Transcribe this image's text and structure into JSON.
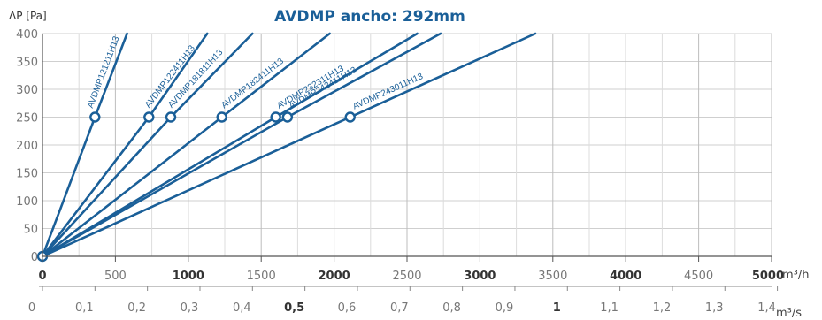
{
  "chart_data": {
    "type": "line",
    "title": "AVDMP ancho: 292mm",
    "ylabel": "ΔP [Pa]",
    "xlabel": "m³/h",
    "x2label": "m³/s",
    "xlim": [
      0,
      5000
    ],
    "ylim": [
      0,
      400
    ],
    "grid": true,
    "line_color": "#1a5f98",
    "title_color": "#1a5f98",
    "grid_color": "#cfcfcf",
    "y_ticks": [
      "0",
      "50",
      "100",
      "150",
      "200",
      "250",
      "300",
      "350",
      "400"
    ],
    "x_ticks": [
      {
        "value": 0,
        "label": "0",
        "bold": true
      },
      {
        "value": 500,
        "label": "500",
        "bold": false
      },
      {
        "value": 1000,
        "label": "1000",
        "bold": true
      },
      {
        "value": 1500,
        "label": "1500",
        "bold": false
      },
      {
        "value": 2000,
        "label": "2000",
        "bold": true
      },
      {
        "value": 2500,
        "label": "2500",
        "bold": false
      },
      {
        "value": 3000,
        "label": "3000",
        "bold": true
      },
      {
        "value": 3500,
        "label": "3500",
        "bold": false
      },
      {
        "value": 4000,
        "label": "4000",
        "bold": true
      },
      {
        "value": 4500,
        "label": "4500",
        "bold": false
      },
      {
        "value": 5000,
        "label": "5000",
        "bold": true
      }
    ],
    "x2_ticks": [
      {
        "value": 0,
        "label": "0",
        "bold": false
      },
      {
        "value": 0.1,
        "label": "0,1",
        "bold": false
      },
      {
        "value": 0.2,
        "label": "0,2",
        "bold": false
      },
      {
        "value": 0.3,
        "label": "0,3",
        "bold": false
      },
      {
        "value": 0.4,
        "label": "0,4",
        "bold": false
      },
      {
        "value": 0.5,
        "label": "0,5",
        "bold": true
      },
      {
        "value": 0.6,
        "label": "0,6",
        "bold": false
      },
      {
        "value": 0.7,
        "label": "0,7",
        "bold": false
      },
      {
        "value": 0.8,
        "label": "0,8",
        "bold": false
      },
      {
        "value": 0.9,
        "label": "0,9",
        "bold": false
      },
      {
        "value": 1.0,
        "label": "1",
        "bold": true
      },
      {
        "value": 1.1,
        "label": "1,1",
        "bold": false
      },
      {
        "value": 1.2,
        "label": "1,2",
        "bold": false
      },
      {
        "value": 1.3,
        "label": "1,3",
        "bold": false
      },
      {
        "value": 1.4,
        "label": "1,4",
        "bold": false
      }
    ],
    "series": [
      {
        "name": "AVDMP121211H13",
        "x": [
          0,
          360,
          580
        ],
        "y": [
          0,
          250,
          400
        ]
      },
      {
        "name": "AVDMP122411H13",
        "x": [
          0,
          730,
          1130
        ],
        "y": [
          0,
          250,
          400
        ]
      },
      {
        "name": "AVDMP181811H13",
        "x": [
          0,
          880,
          1440
        ],
        "y": [
          0,
          250,
          400
        ]
      },
      {
        "name": "AVDMP182411H13",
        "x": [
          0,
          1230,
          1970
        ],
        "y": [
          0,
          250,
          400
        ]
      },
      {
        "name": "AVDMP232311H13",
        "x": [
          0,
          1600,
          2570
        ],
        "y": [
          0,
          250,
          400
        ]
      },
      {
        "name": "AVDMP242411H13",
        "x": [
          0,
          1680,
          2730
        ],
        "y": [
          0,
          250,
          400
        ]
      },
      {
        "name": "AVDMP243011H13",
        "x": [
          0,
          2110,
          3380
        ],
        "y": [
          0,
          250,
          400
        ]
      }
    ],
    "markers": [
      {
        "x": 0,
        "y": 0
      },
      {
        "x": 360,
        "y": 250
      },
      {
        "x": 730,
        "y": 250
      },
      {
        "x": 880,
        "y": 250
      },
      {
        "x": 1230,
        "y": 250
      },
      {
        "x": 1600,
        "y": 250
      },
      {
        "x": 1680,
        "y": 250
      },
      {
        "x": 2110,
        "y": 250
      }
    ]
  }
}
